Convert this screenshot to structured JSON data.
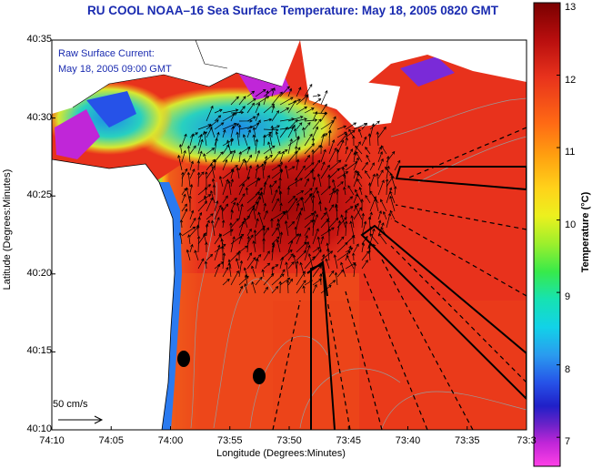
{
  "title": "RU COOL  NOAA–16  Sea Surface Temperature:  May 18, 2005 0820 GMT",
  "overlay": {
    "line1": "Raw Surface Current:",
    "line2": "May 18, 2005 09:00 GMT"
  },
  "x_axis": {
    "title": "Longitude (Degrees:Minutes)",
    "ticks": [
      "74:10",
      "74:05",
      "74:00",
      "73:55",
      "73:50",
      "73:45",
      "73:40",
      "73:35",
      "73:3"
    ]
  },
  "y_axis": {
    "title": "Latitude (Degrees:Minutes)",
    "ticks": [
      "40:35",
      "40:30",
      "40:25",
      "40:20",
      "40:15",
      "40:10"
    ]
  },
  "colorbar": {
    "title": "Temperature (°C)",
    "ticks": [
      "13",
      "12",
      "11",
      "10",
      "9",
      "8",
      "7"
    ],
    "range": [
      6.6,
      13
    ]
  },
  "scale_arrow": {
    "label": "50 cm/s"
  },
  "colors": {
    "title_text": "#1a2bb0",
    "land": "#ffffff",
    "cloud_gap": "#ffffff",
    "warm_water": "#e8321c",
    "cool_water": "#2a9bef"
  }
}
